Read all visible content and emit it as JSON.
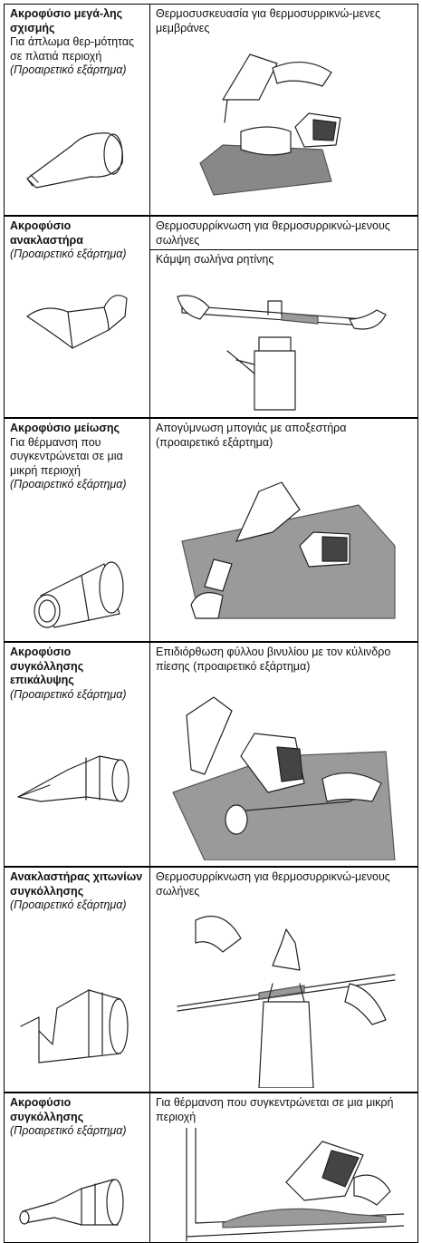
{
  "rows": [
    {
      "nozzle": "Ακροφύσιο μεγά-λης σχισμής",
      "description": "Για άπλωμα θερ-μότητας σε πλατιά περιοχή",
      "optional": "(Προαιρετικό εξάρτημα)",
      "applications": [
        "Θερμοσυσκευασία για θερμοσυρρικνώ-μενες μεμβράνες"
      ]
    },
    {
      "nozzle": "Ακροφύσιο ανακλαστήρα",
      "optional": "(Προαιρετικό εξάρτημα)",
      "applications": [
        "Θερμοσυρρίκνωση για θερμοσυρρικνώ-μενους σωλήνες",
        "Κάμψη σωλήνα ρητίνης"
      ]
    },
    {
      "nozzle": "Ακροφύσιο μείωσης",
      "description": "Για θέρμανση που συγκεντρώνεται σε μια μικρή περιοχή",
      "optional": "(Προαιρετικό εξάρτημα)",
      "applications": [
        "Απογύμνωση μπογιάς με αποξεστήρα (προαιρετικό εξάρτημα)"
      ]
    },
    {
      "nozzle": "Ακροφύσιο συγκόλλησης επικάλυψης",
      "optional": "(Προαιρετικό εξάρτημα)",
      "applications": [
        "Επιδιόρθωση φύλλου βινυλίου με τον κύλινδρο πίεσης (προαιρετικό εξάρτημα)"
      ]
    },
    {
      "nozzle": "Ανακλαστήρας χιτωνίων συγκόλλησης",
      "optional": "(Προαιρετικό εξάρτημα)",
      "applications": [
        "Θερμοσυρρίκνωση για θερμοσυρρικνώ-μενους σωλήνες"
      ]
    },
    {
      "nozzle": "Ακροφύσιο συγκόλλησης",
      "optional": "(Προαιρετικό εξάρτημα)",
      "applications": [
        "Για θέρμανση που συγκεντρώνεται σε μια μικρή περιοχή"
      ]
    }
  ]
}
